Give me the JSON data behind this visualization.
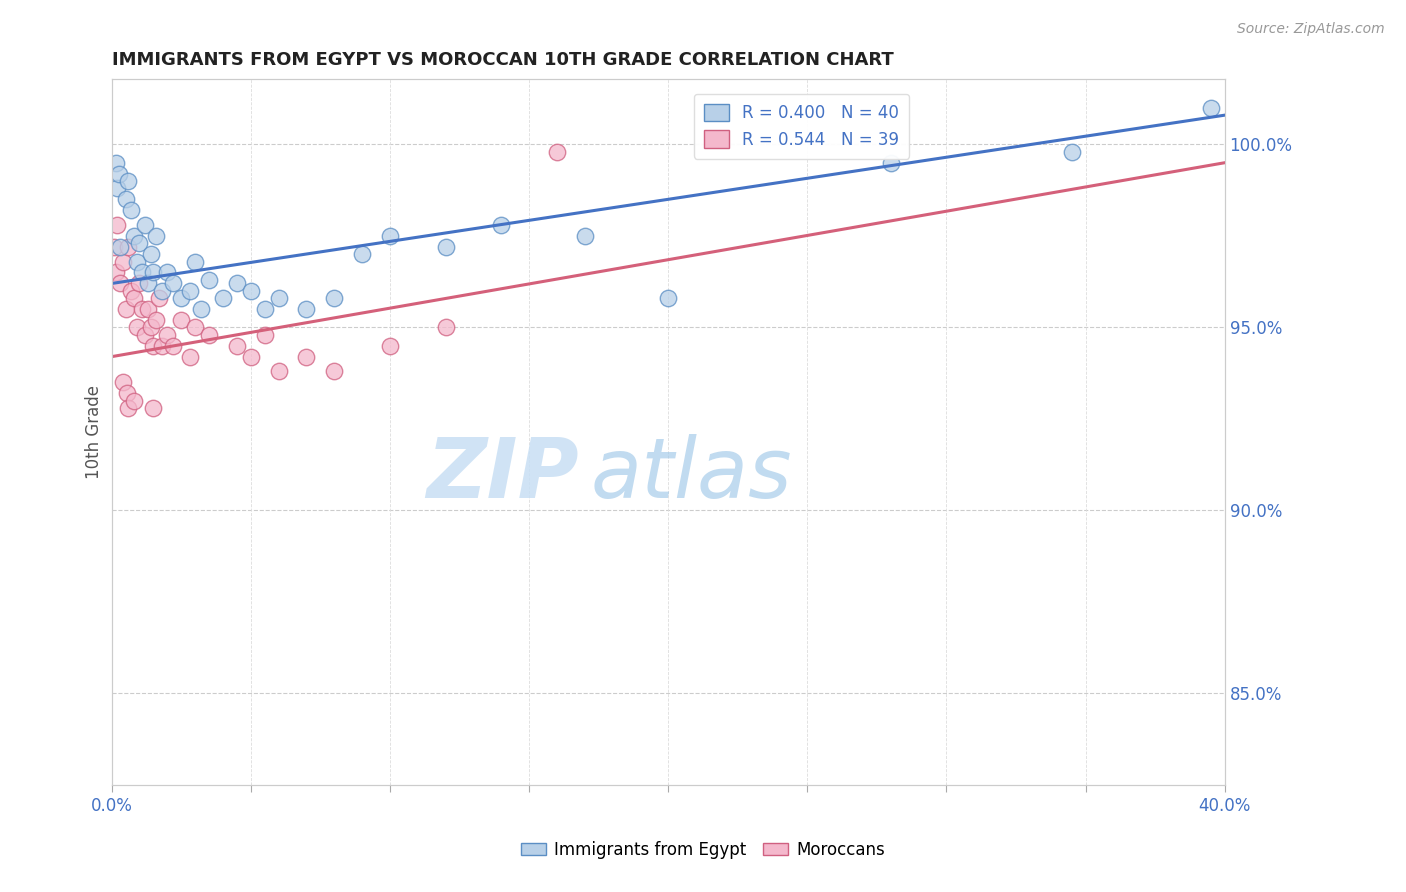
{
  "title": "IMMIGRANTS FROM EGYPT VS MOROCCAN 10TH GRADE CORRELATION CHART",
  "source": "Source: ZipAtlas.com",
  "ylabel": "10th Grade",
  "xlim": [
    0.0,
    40.0
  ],
  "ylim": [
    82.5,
    101.8
  ],
  "yticks": [
    85.0,
    90.0,
    95.0,
    100.0
  ],
  "xtick_positions": [
    0.0,
    5.0,
    10.0,
    15.0,
    20.0,
    25.0,
    30.0,
    35.0,
    40.0
  ],
  "blue_label": "Immigrants from Egypt",
  "pink_label": "Moroccans",
  "blue_R": 0.4,
  "blue_N": 40,
  "pink_R": 0.544,
  "pink_N": 39,
  "blue_color": "#b8d0e8",
  "pink_color": "#f4b8cc",
  "blue_edge_color": "#5b8ec4",
  "pink_edge_color": "#d06080",
  "blue_line_color": "#4472c4",
  "pink_line_color": "#d4607a",
  "watermark_zip": "ZIP",
  "watermark_atlas": "atlas",
  "blue_trend": [
    96.2,
    100.8
  ],
  "pink_trend": [
    94.2,
    99.5
  ],
  "blue_points": [
    [
      0.15,
      99.5
    ],
    [
      0.2,
      98.8
    ],
    [
      0.25,
      99.2
    ],
    [
      0.5,
      98.5
    ],
    [
      0.6,
      99.0
    ],
    [
      0.7,
      98.2
    ],
    [
      0.8,
      97.5
    ],
    [
      0.9,
      96.8
    ],
    [
      1.0,
      97.3
    ],
    [
      1.1,
      96.5
    ],
    [
      1.2,
      97.8
    ],
    [
      1.3,
      96.2
    ],
    [
      1.4,
      97.0
    ],
    [
      1.5,
      96.5
    ],
    [
      1.6,
      97.5
    ],
    [
      1.8,
      96.0
    ],
    [
      2.0,
      96.5
    ],
    [
      2.2,
      96.2
    ],
    [
      2.5,
      95.8
    ],
    [
      2.8,
      96.0
    ],
    [
      3.0,
      96.8
    ],
    [
      3.2,
      95.5
    ],
    [
      3.5,
      96.3
    ],
    [
      4.0,
      95.8
    ],
    [
      4.5,
      96.2
    ],
    [
      5.0,
      96.0
    ],
    [
      5.5,
      95.5
    ],
    [
      6.0,
      95.8
    ],
    [
      7.0,
      95.5
    ],
    [
      8.0,
      95.8
    ],
    [
      9.0,
      97.0
    ],
    [
      10.0,
      97.5
    ],
    [
      12.0,
      97.2
    ],
    [
      14.0,
      97.8
    ],
    [
      17.0,
      97.5
    ],
    [
      20.0,
      95.8
    ],
    [
      28.0,
      99.5
    ],
    [
      34.5,
      99.8
    ],
    [
      39.5,
      101.0
    ],
    [
      0.3,
      97.2
    ]
  ],
  "pink_points": [
    [
      0.1,
      97.2
    ],
    [
      0.15,
      96.5
    ],
    [
      0.2,
      97.8
    ],
    [
      0.3,
      96.2
    ],
    [
      0.4,
      96.8
    ],
    [
      0.5,
      95.5
    ],
    [
      0.6,
      97.2
    ],
    [
      0.7,
      96.0
    ],
    [
      0.8,
      95.8
    ],
    [
      0.9,
      95.0
    ],
    [
      1.0,
      96.2
    ],
    [
      1.1,
      95.5
    ],
    [
      1.2,
      94.8
    ],
    [
      1.3,
      95.5
    ],
    [
      1.4,
      95.0
    ],
    [
      1.5,
      94.5
    ],
    [
      1.6,
      95.2
    ],
    [
      1.7,
      95.8
    ],
    [
      1.8,
      94.5
    ],
    [
      2.0,
      94.8
    ],
    [
      2.2,
      94.5
    ],
    [
      2.5,
      95.2
    ],
    [
      2.8,
      94.2
    ],
    [
      3.0,
      95.0
    ],
    [
      3.5,
      94.8
    ],
    [
      4.5,
      94.5
    ],
    [
      5.0,
      94.2
    ],
    [
      5.5,
      94.8
    ],
    [
      6.0,
      93.8
    ],
    [
      7.0,
      94.2
    ],
    [
      8.0,
      93.8
    ],
    [
      10.0,
      94.5
    ],
    [
      12.0,
      95.0
    ],
    [
      16.0,
      99.8
    ],
    [
      0.4,
      93.5
    ],
    [
      0.55,
      93.2
    ],
    [
      0.6,
      92.8
    ],
    [
      0.8,
      93.0
    ],
    [
      1.5,
      92.8
    ]
  ]
}
